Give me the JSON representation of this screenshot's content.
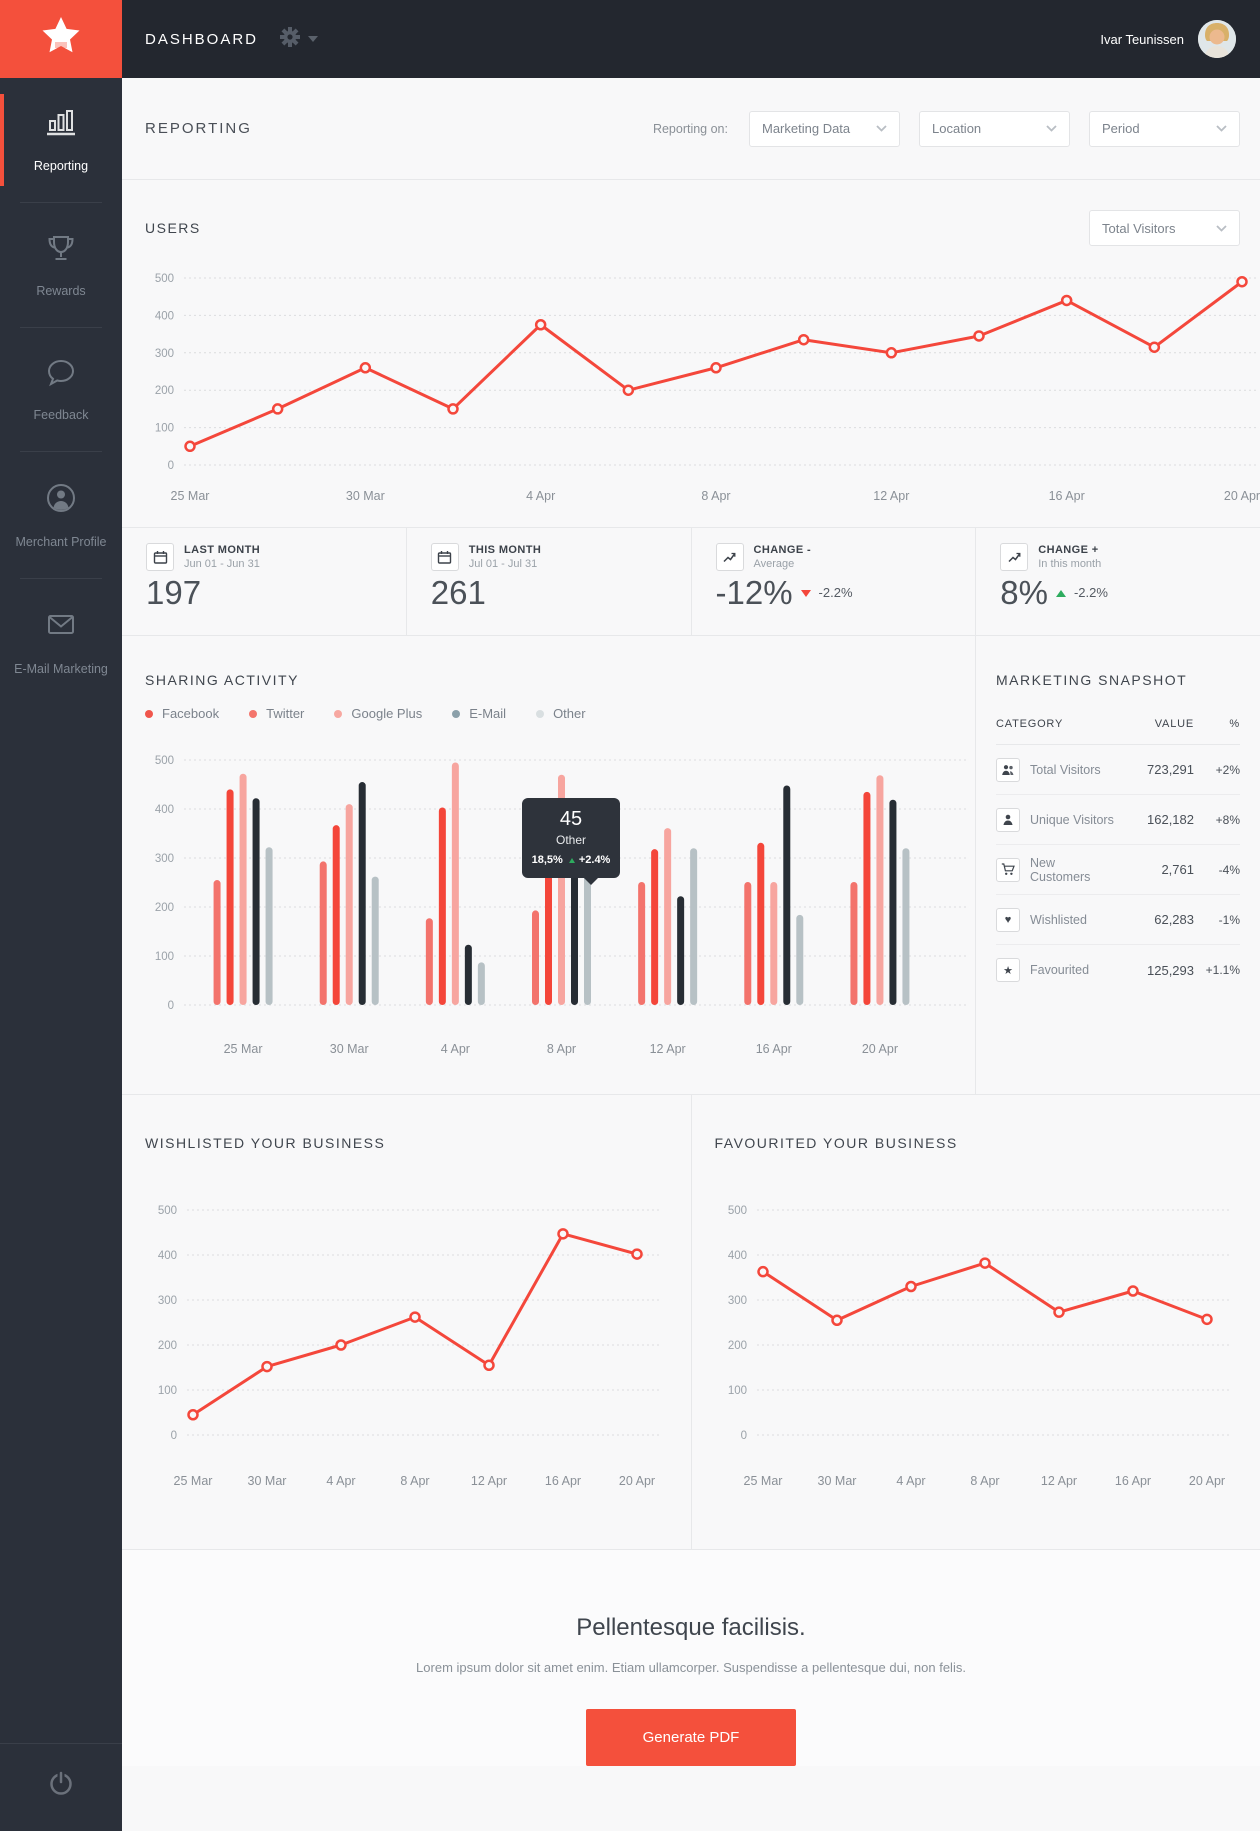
{
  "topbar": {
    "title": "DASHBOARD",
    "user_name": "Ivar Teunissen"
  },
  "sidebar": {
    "items": [
      {
        "label": "Reporting",
        "icon": "bar-chart-icon",
        "active": true
      },
      {
        "label": "Rewards",
        "icon": "trophy-icon",
        "active": false
      },
      {
        "label": "Feedback",
        "icon": "speech-bubble-icon",
        "active": false
      },
      {
        "label": "Merchant Profile",
        "icon": "person-circle-icon",
        "active": false
      },
      {
        "label": "E-Mail Marketing",
        "icon": "envelope-icon",
        "active": false
      }
    ]
  },
  "header": {
    "title": "REPORTING",
    "reporting_on": "Reporting on:",
    "filters": [
      "Marketing Data",
      "Location",
      "Period"
    ]
  },
  "users": {
    "title": "USERS",
    "filter": "Total Visitors"
  },
  "stats": [
    {
      "icon": "calendar-icon",
      "title": "LAST MONTH",
      "subtitle": "Jun 01 - Jun 31",
      "value": "197"
    },
    {
      "icon": "calendar-icon",
      "title": "THIS MONTH",
      "subtitle": "Jul 01 - Jul 31",
      "value": "261"
    },
    {
      "icon": "trend-icon",
      "title": "CHANGE -",
      "subtitle": "Average",
      "value": "-12%",
      "direction": "down",
      "delta": "-2.2%"
    },
    {
      "icon": "trend-icon",
      "title": "CHANGE +",
      "subtitle": "In this month",
      "value": "8%",
      "direction": "up",
      "delta": "-2.2%"
    }
  ],
  "sharing": {
    "title": "SHARING ACTIVITY",
    "legend": [
      {
        "label": "Facebook",
        "color": "#f0564c"
      },
      {
        "label": "Twitter",
        "color": "#f4756c"
      },
      {
        "label": "Google Plus",
        "color": "#f7a8a1"
      },
      {
        "label": "E-Mail",
        "color": "#8ba0aa"
      },
      {
        "label": "Other",
        "color": "#d9dfe1"
      }
    ],
    "tooltip": {
      "value": "45",
      "label": "Other",
      "pct": "18,5%",
      "delta": "+2.4%"
    }
  },
  "snapshot": {
    "title": "MARKETING SNAPSHOT",
    "columns": [
      "CATEGORY",
      "VALUE",
      "%"
    ],
    "rows": [
      {
        "icon": "people-icon",
        "label": "Total Visitors",
        "value": "723,291",
        "pct": "+2%"
      },
      {
        "icon": "person-icon",
        "label": "Unique Visitors",
        "value": "162,182",
        "pct": "+8%"
      },
      {
        "icon": "cart-icon",
        "label": "New Customers",
        "value": "2,761",
        "pct": "-4%"
      },
      {
        "icon": "heart-icon",
        "label": "Wishlisted",
        "value": "62,283",
        "pct": "-1%"
      },
      {
        "icon": "star-icon",
        "label": "Favourited",
        "value": "125,293",
        "pct": "+1.1%"
      }
    ]
  },
  "wishlisted": {
    "title": "WISHLISTED YOUR BUSINESS"
  },
  "favourited": {
    "title": "FAVOURITED YOUR BUSINESS"
  },
  "footer": {
    "heading": "Pellentesque facilisis.",
    "body": "Lorem ipsum dolor sit amet enim. Etiam ullamcorper. Suspendisse a pellentesque dui, non felis.",
    "button": "Generate PDF"
  },
  "colors": {
    "accent": "#f4503c",
    "line_red": "#f4473b",
    "up_green": "#2eac5f",
    "down_red": "#f4473b",
    "bar_black": "#272d34",
    "bar_gray": "#b7c1c5"
  },
  "chart_data": [
    {
      "id": "users_line",
      "type": "line",
      "title": "USERS",
      "x": [
        "25 Mar",
        "",
        "30 Mar",
        "",
        "4 Apr",
        "",
        "8 Apr",
        "",
        "12 Apr",
        "",
        "16 Apr",
        "",
        "20 Apr"
      ],
      "values": [
        50,
        150,
        260,
        150,
        375,
        200,
        260,
        335,
        300,
        345,
        440,
        315,
        490
      ],
      "ylim": [
        0,
        500
      ],
      "yticks": [
        0,
        100,
        200,
        300,
        400,
        500
      ],
      "color": "#f4473b",
      "grid": "dotted-horizontal",
      "legend_position": "none"
    },
    {
      "id": "sharing_bars",
      "type": "bar",
      "title": "SHARING ACTIVITY",
      "categories": [
        "25 Mar",
        "30 Mar",
        "4 Apr",
        "8 Apr",
        "12 Apr",
        "16 Apr",
        "20 Apr"
      ],
      "series": [
        {
          "name": "Facebook",
          "color": "#f3736c",
          "values": [
            255,
            293,
            177,
            193,
            251,
            251,
            251
          ]
        },
        {
          "name": "Twitter",
          "color": "#f4463a",
          "values": [
            440,
            367,
            403,
            330,
            318,
            331,
            435
          ]
        },
        {
          "name": "Google Plus",
          "color": "#f7a59f",
          "values": [
            472,
            410,
            495,
            470,
            361,
            251,
            469
          ]
        },
        {
          "name": "E-Mail",
          "color": "#272d34",
          "values": [
            422,
            455,
            123,
            300,
            222,
            448,
            419
          ]
        },
        {
          "name": "Other",
          "color": "#b7c1c5",
          "values": [
            322,
            262,
            87,
            281,
            320,
            184,
            320
          ]
        }
      ],
      "ylim": [
        0,
        500
      ],
      "yticks": [
        0,
        100,
        200,
        300,
        400,
        500
      ],
      "grid": "dotted-horizontal",
      "legend_position": "top"
    },
    {
      "id": "wishlisted_line",
      "type": "line",
      "title": "WISHLISTED YOUR BUSINESS",
      "x": [
        "25 Mar",
        "30 Mar",
        "4 Apr",
        "8 Apr",
        "12 Apr",
        "16 Apr",
        "20 Apr"
      ],
      "values": [
        45,
        152,
        200,
        262,
        155,
        447,
        402
      ],
      "ylim": [
        0,
        500
      ],
      "yticks": [
        0,
        100,
        200,
        300,
        400,
        500
      ],
      "color": "#f4473b",
      "grid": "dotted-horizontal",
      "legend_position": "none"
    },
    {
      "id": "favourited_line",
      "type": "line",
      "title": "FAVOURITED YOUR BUSINESS",
      "x": [
        "25 Mar",
        "30 Mar",
        "4 Apr",
        "8 Apr",
        "12 Apr",
        "16 Apr",
        "20 Apr"
      ],
      "values": [
        363,
        255,
        330,
        382,
        273,
        320,
        257
      ],
      "ylim": [
        0,
        500
      ],
      "yticks": [
        0,
        100,
        200,
        300,
        400,
        500
      ],
      "color": "#f4473b",
      "grid": "dotted-horizontal",
      "legend_position": "none"
    }
  ]
}
